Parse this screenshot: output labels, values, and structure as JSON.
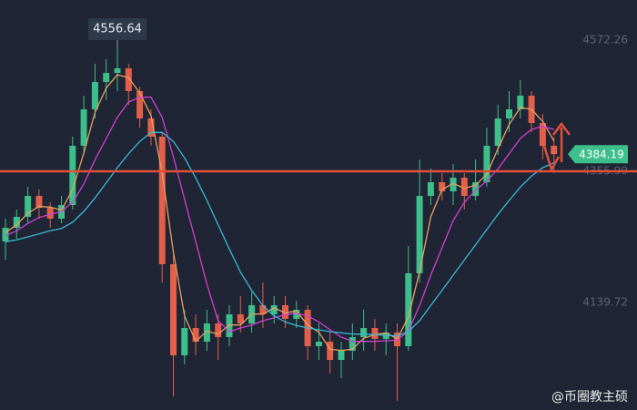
{
  "chart_data": {
    "type": "candlestick",
    "ylim": [
      3963,
      4638
    ],
    "yticks": [
      4572.26,
      4355.99,
      4139.72
    ],
    "up_color": "#3cbf8a",
    "down_color": "#e2604a",
    "level": 4356,
    "level_color": "#e2503c",
    "watermark": "@币圈教主硕",
    "open": [
      4240.5,
      4263,
      4281,
      4315.5,
      4296,
      4278,
      4300.5,
      4398,
      4458,
      4503,
      4518,
      4525.5,
      4488,
      4443,
      4413,
      4203,
      4053,
      4098,
      4075.5,
      4105.5,
      4083,
      4120.5,
      4105.5,
      4135.5,
      4120.5,
      4135.5,
      4113,
      4128,
      4068,
      4075.5,
      4045.5,
      4060.5,
      4083,
      4098,
      4080,
      4090.5,
      4068,
      4188,
      4315.5,
      4338,
      4323,
      4345.5,
      4315.5,
      4338,
      4398,
      4443,
      4458,
      4480.5,
      4435.5,
      4398
    ],
    "high": [
      4278,
      4293,
      4330.5,
      4326,
      4305,
      4315.5,
      4413,
      4480.5,
      4533,
      4540.5,
      4556.64,
      4533,
      4495.5,
      4458,
      4420.5,
      4218,
      4128,
      4120.5,
      4128,
      4120.5,
      4135.5,
      4150.5,
      4158,
      4173,
      4150.5,
      4150.5,
      4143,
      4135.5,
      4105.5,
      4090.5,
      4075.5,
      4105.5,
      4128,
      4113,
      4105.5,
      4105.5,
      4233,
      4375.5,
      4360.5,
      4353,
      4368,
      4353,
      4375.5,
      4428,
      4465.5,
      4488,
      4506,
      4488,
      4450.5,
      4413
    ],
    "low": [
      4210.5,
      4245,
      4270.5,
      4278,
      4263,
      4270.5,
      4293,
      4383,
      4443,
      4473,
      4488,
      4465.5,
      4428,
      4398,
      4173,
      3985.5,
      4038,
      4053,
      4060.5,
      4045.5,
      4068,
      4090.5,
      4090.5,
      4098,
      4105.5,
      4098,
      4098,
      4045.5,
      4045.5,
      4023,
      4015.5,
      4045.5,
      4060.5,
      4060.5,
      4053,
      3978,
      4060.5,
      4173,
      4300.5,
      4308,
      4300.5,
      4293,
      4308,
      4330.5,
      4383,
      4420.5,
      4443,
      4420.5,
      4375.5,
      4353
    ],
    "close": [
      4263,
      4281,
      4315.5,
      4296,
      4278,
      4300.5,
      4398,
      4458,
      4503,
      4518,
      4525.5,
      4488,
      4443,
      4413,
      4203,
      4053,
      4098,
      4075.5,
      4105.5,
      4083,
      4120.5,
      4105.5,
      4135.5,
      4120.5,
      4135.5,
      4113,
      4128,
      4068,
      4075.5,
      4045.5,
      4060.5,
      4083,
      4098,
      4080,
      4090.5,
      4068,
      4188,
      4315.5,
      4338,
      4323,
      4345.5,
      4315.5,
      4338,
      4398,
      4443,
      4458,
      4480.5,
      4435.5,
      4398,
      4384.19
    ],
    "series": [
      {
        "color": "#e8a060",
        "values": [
          4255,
          4268,
          4287,
          4298,
          4297,
          4292,
          4326,
          4386,
          4453,
          4493,
          4515,
          4510,
          4485,
          4448,
          4353,
          4223,
          4118,
          4076,
          4093,
          4088,
          4103,
          4103,
          4121,
          4121,
          4131,
          4123,
          4126,
          4103,
          4091,
          4063,
          4061,
          4063,
          4081,
          4087,
          4090,
          4080,
          4116,
          4191,
          4281,
          4326,
          4336,
          4328,
          4333,
          4351,
          4393,
          4433,
          4461,
          4458,
          4438,
          4406
        ]
      },
      {
        "color": "#d040d0",
        "values": [
          4250,
          4258,
          4270,
          4280,
          4285,
          4290,
          4305,
          4335,
          4375,
          4410,
          4445,
          4470,
          4478,
          4478,
          4445,
          4380,
          4310,
          4240,
          4170,
          4110,
          4092,
          4098,
          4103,
          4110,
          4115,
          4120,
          4122,
          4118,
          4108,
          4095,
          4083,
          4076,
          4076,
          4076,
          4077,
          4078,
          4093,
          4135,
          4185,
          4230,
          4275,
          4305,
          4325,
          4340,
          4360,
          4385,
          4410,
          4425,
          4430,
          4425
        ]
      },
      {
        "color": "#3bb8d8",
        "values": [
          4240,
          4243,
          4248,
          4253,
          4258,
          4262,
          4272,
          4290,
          4312,
          4337,
          4362,
          4385,
          4405,
          4420,
          4420,
          4405,
          4378,
          4345,
          4308,
          4268,
          4228,
          4190,
          4160,
          4135,
          4118,
          4108,
          4102,
          4098,
          4095,
          4092,
          4090,
          4088,
          4088,
          4087,
          4086,
          4085,
          4092,
          4110,
          4135,
          4160,
          4185,
          4210,
          4235,
          4260,
          4285,
          4308,
          4330,
          4348,
          4362,
          4370
        ]
      }
    ]
  }
}
